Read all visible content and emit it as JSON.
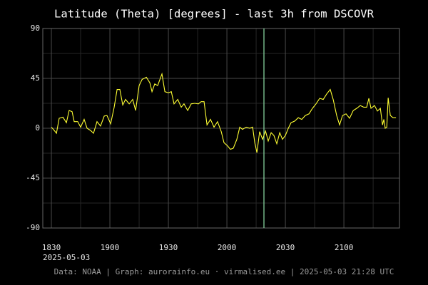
{
  "chart_data": {
    "type": "line",
    "title": "Latitude (Theta) [degrees] - last 3h from DSCOVR",
    "x_sublabel": "2025-05-03",
    "footer": "Data: NOAA | Graph: aurorainfo.eu · virmalised.ee | 2025-05-03 21:28 UTC",
    "color": "#ffff33",
    "x": [
      1110.0,
      1111.5,
      1112.6,
      1114.0,
      1115.9,
      1117.7,
      1119.1,
      1120.6,
      1121.7,
      1123.5,
      1125.0,
      1126.8,
      1128.3,
      1130.1,
      1131.6,
      1133.4,
      1135.2,
      1137.1,
      1138.5,
      1140.4,
      1142.2,
      1143.7,
      1145.1,
      1146.6,
      1148.0,
      1149.9,
      1151.7,
      1153.2,
      1155.0,
      1156.5,
      1158.7,
      1160.5,
      1161.6,
      1163.0,
      1164.5,
      1166.7,
      1168.2,
      1170.0,
      1171.5,
      1172.9,
      1174.8,
      1176.6,
      1178.0,
      1179.9,
      1181.7,
      1183.5,
      1185.4,
      1186.8,
      1188.3,
      1189.8,
      1191.6,
      1193.4,
      1195.2,
      1197.1,
      1198.5,
      1200.4,
      1201.8,
      1203.3,
      1205.1,
      1206.6,
      1208.0,
      1209.9,
      1211.7,
      1213.2,
      1214.3,
      1215.4,
      1216.8,
      1218.3,
      1219.8,
      1221.2,
      1222.7,
      1224.1,
      1225.6,
      1227.1,
      1228.5,
      1230.0,
      1231.5,
      1232.9,
      1234.8,
      1236.6,
      1238.4,
      1240.2,
      1242.1,
      1243.9,
      1245.7,
      1247.6,
      1249.4,
      1251.2,
      1253.0,
      1254.5,
      1256.3,
      1257.8,
      1259.3,
      1261.1,
      1262.9,
      1264.8,
      1266.6,
      1268.4,
      1270.2,
      1271.7,
      1272.8,
      1273.9,
      1275.7,
      1277.2,
      1278.7,
      1279.8,
      1280.5,
      1281.2,
      1282.0,
      1282.7,
      1283.8,
      1285.2,
      1286.7
    ],
    "values": [
      1,
      -2,
      -4.5,
      9,
      10,
      5,
      16,
      15,
      6,
      6,
      1,
      8,
      0,
      -2,
      -4.5,
      6,
      2,
      11,
      11.5,
      4,
      19,
      35,
      35,
      21,
      26,
      22,
      26,
      16,
      38.5,
      44,
      46,
      41,
      33,
      40,
      38.5,
      49,
      33,
      32,
      33,
      22,
      26,
      19,
      22,
      16,
      22,
      22.5,
      22,
      24,
      24,
      3,
      8,
      1,
      6,
      -3,
      -13,
      -16,
      -19,
      -18,
      -10,
      1,
      -1,
      1,
      0,
      1,
      -13,
      -22,
      -3,
      -10,
      -2.5,
      -11.5,
      -4,
      -6.5,
      -14,
      -4,
      -10,
      -6.5,
      0,
      5,
      6.5,
      9.5,
      8,
      11.5,
      13,
      18,
      22,
      27,
      26,
      31,
      35,
      26,
      11.5,
      3,
      11.5,
      13,
      9,
      16,
      18,
      20.5,
      19,
      19,
      27,
      18,
      20.5,
      15.5,
      18,
      3,
      8,
      0,
      1,
      27.5,
      11.5,
      9.5,
      9.5
    ],
    "xlim": [
      1105.6,
      1288.5
    ],
    "xticks": [
      {
        "value": 1110,
        "label": "1830"
      },
      {
        "value": 1140,
        "label": "1900"
      },
      {
        "value": 1170,
        "label": "1930"
      },
      {
        "value": 1200,
        "label": "2000"
      },
      {
        "value": 1230,
        "label": "2030"
      },
      {
        "value": 1260,
        "label": "2100"
      }
    ],
    "minor_xticks": [
      1125,
      1155,
      1185,
      1215,
      1245,
      1275
    ],
    "ylim": [
      -90,
      90
    ],
    "yticks": [
      -90,
      -45,
      0,
      45,
      90
    ],
    "minor_yticks": [
      -67.5,
      -22.5,
      22.5,
      67.5
    ],
    "vline": {
      "x": 1219,
      "color": "#8fe0a8"
    },
    "grid": true
  }
}
